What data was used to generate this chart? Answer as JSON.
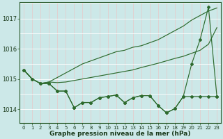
{
  "x": [
    0,
    1,
    2,
    3,
    4,
    5,
    6,
    7,
    8,
    9,
    10,
    11,
    12,
    13,
    14,
    15,
    16,
    17,
    18,
    19,
    20,
    21,
    22,
    23
  ],
  "series": {
    "line_top": [
      1015.3,
      1015.0,
      1014.85,
      1014.9,
      1015.05,
      1015.2,
      1015.35,
      1015.5,
      1015.6,
      1015.7,
      1015.8,
      1015.9,
      1015.95,
      1016.05,
      1016.1,
      1016.2,
      1016.3,
      1016.45,
      1016.6,
      1016.75,
      1016.95,
      1017.1,
      1017.25,
      1017.35
    ],
    "line_mid": [
      1015.3,
      1015.0,
      1014.85,
      1014.9,
      1014.88,
      1014.9,
      1014.95,
      1015.0,
      1015.05,
      1015.1,
      1015.15,
      1015.2,
      1015.25,
      1015.3,
      1015.38,
      1015.45,
      1015.52,
      1015.6,
      1015.68,
      1015.75,
      1015.85,
      1015.95,
      1016.15,
      1016.7
    ],
    "line_zigzag": [
      1015.3,
      1015.0,
      1014.85,
      1014.85,
      1014.6,
      1014.6,
      1014.05,
      1014.22,
      1014.22,
      1014.38,
      1014.42,
      1014.47,
      1014.22,
      1014.38,
      1014.45,
      1014.45,
      1014.12,
      1013.88,
      1014.02,
      1014.42,
      1014.42,
      1014.42,
      1014.42,
      1014.42
    ],
    "line_spike": [
      1015.3,
      1015.0,
      1014.85,
      1014.85,
      1014.6,
      1014.6,
      1014.05,
      1014.22,
      1014.22,
      1014.38,
      1014.42,
      1014.47,
      1014.22,
      1014.38,
      1014.45,
      1014.45,
      1014.12,
      1013.88,
      1014.02,
      1014.42,
      1015.5,
      1016.3,
      1017.38,
      1014.42
    ]
  },
  "xlabel": "Graphe pression niveau de la mer (hPa)",
  "ylim": [
    1013.55,
    1017.55
  ],
  "xlim": [
    -0.5,
    23.5
  ],
  "yticks": [
    1014,
    1015,
    1016,
    1017
  ],
  "xtick_labels": [
    "0",
    "1",
    "2",
    "3",
    "4",
    "5",
    "6",
    "7",
    "8",
    "9",
    "10",
    "11",
    "12",
    "13",
    "14",
    "15",
    "16",
    "17",
    "18",
    "19",
    "20",
    "21",
    "22",
    "23"
  ],
  "line_color": "#2d6a2d",
  "bg_color": "#cce8e8",
  "grid_color_v": "#e8c8c8",
  "grid_color_h": "#ffffff",
  "marker": "D",
  "marker_size": 2.0,
  "linewidth": 0.85
}
